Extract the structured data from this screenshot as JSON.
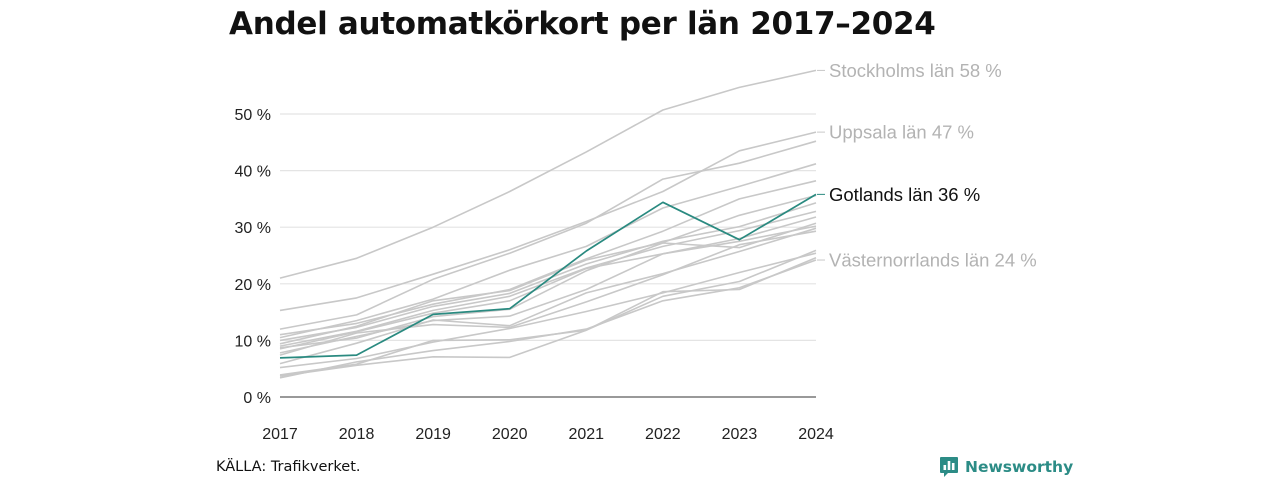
{
  "title": "Andel automatkörkort per län 2017–2024",
  "source": "KÄLLA: Trafikverket.",
  "brand": {
    "name": "Newsworthy",
    "icon": "bar-chart-icon",
    "color": "#2c8c86"
  },
  "chart_data": {
    "type": "line",
    "x": [
      2017,
      2018,
      2019,
      2020,
      2021,
      2022,
      2023,
      2024
    ],
    "xlim": [
      2017,
      2024
    ],
    "ylim": [
      0,
      57
    ],
    "yticks": [
      0,
      10,
      20,
      30,
      40,
      50
    ],
    "ytick_labels": [
      "0 %",
      "10 %",
      "20 %",
      "30 %",
      "40 %",
      "50 %"
    ],
    "grid": "horizontal",
    "highlight_color": "#2a8a80",
    "background_color": "#c8c8c8",
    "series": [
      {
        "name": "Stockholms län",
        "label": "Stockholms län 58 %",
        "highlight": false,
        "values": [
          21,
          24.5,
          30,
          36.3,
          43.3,
          50.7,
          54.7,
          57.7
        ]
      },
      {
        "name": "Uppsala län",
        "label": "Uppsala län 47 %",
        "highlight": false,
        "values": [
          15.3,
          17.5,
          21.7,
          26,
          31,
          36.3,
          43.5,
          46.8
        ]
      },
      {
        "name": "Gotlands län",
        "label": "Gotlands län 36 %",
        "highlight": true,
        "values": [
          6.9,
          7.4,
          14.6,
          15.6,
          25.8,
          34.4,
          27.8,
          35.8
        ]
      },
      {
        "name": "Västernorrlands län",
        "label": "Västernorrlands län 24 %",
        "highlight": false,
        "values": [
          3.4,
          6.2,
          8.2,
          9.8,
          12,
          17,
          19.3,
          24.2
        ]
      },
      {
        "values": [
          12,
          14.5,
          20.8,
          25.4,
          30.7,
          38.5,
          41.3,
          45.2
        ]
      },
      {
        "values": [
          10.5,
          13.5,
          17.3,
          22.4,
          26.6,
          33.4,
          37.2,
          41.2
        ]
      },
      {
        "values": [
          11,
          13,
          16.4,
          19,
          24.4,
          29.3,
          35,
          38.2
        ]
      },
      {
        "values": [
          9.4,
          12.5,
          17,
          18.8,
          24.2,
          27.3,
          32.1,
          35.6
        ]
      },
      {
        "values": [
          10,
          12.3,
          16,
          18.3,
          23.5,
          27.5,
          30.1,
          34.3
        ]
      },
      {
        "values": [
          9,
          11.6,
          15.3,
          17.8,
          22.8,
          26.6,
          29.4,
          32.8
        ]
      },
      {
        "values": [
          8.5,
          11.5,
          14.8,
          17,
          22.7,
          25.3,
          28,
          31.8
        ]
      },
      {
        "values": [
          8.7,
          10.4,
          14.2,
          15.5,
          22.3,
          27.2,
          26.4,
          30.7
        ]
      },
      {
        "values": [
          7.8,
          10.7,
          13.5,
          14.3,
          19,
          25.3,
          27.5,
          30.2
        ]
      },
      {
        "values": [
          5.9,
          9.5,
          13.6,
          12.6,
          18.4,
          21.8,
          25.7,
          29.8
        ]
      },
      {
        "values": [
          7.4,
          11.3,
          12.8,
          12.3,
          16.8,
          21.6,
          26.9,
          29.3
        ]
      },
      {
        "values": [
          5.2,
          6.8,
          9.7,
          12.1,
          15.1,
          18.4,
          22,
          25.4
        ]
      },
      {
        "values": [
          3.9,
          5.8,
          10,
          10.1,
          11.8,
          18.6,
          19,
          24.6
        ]
      },
      {
        "values": [
          3.7,
          5.6,
          7.1,
          7,
          11.8,
          17.8,
          20.4,
          25.9
        ]
      }
    ]
  }
}
